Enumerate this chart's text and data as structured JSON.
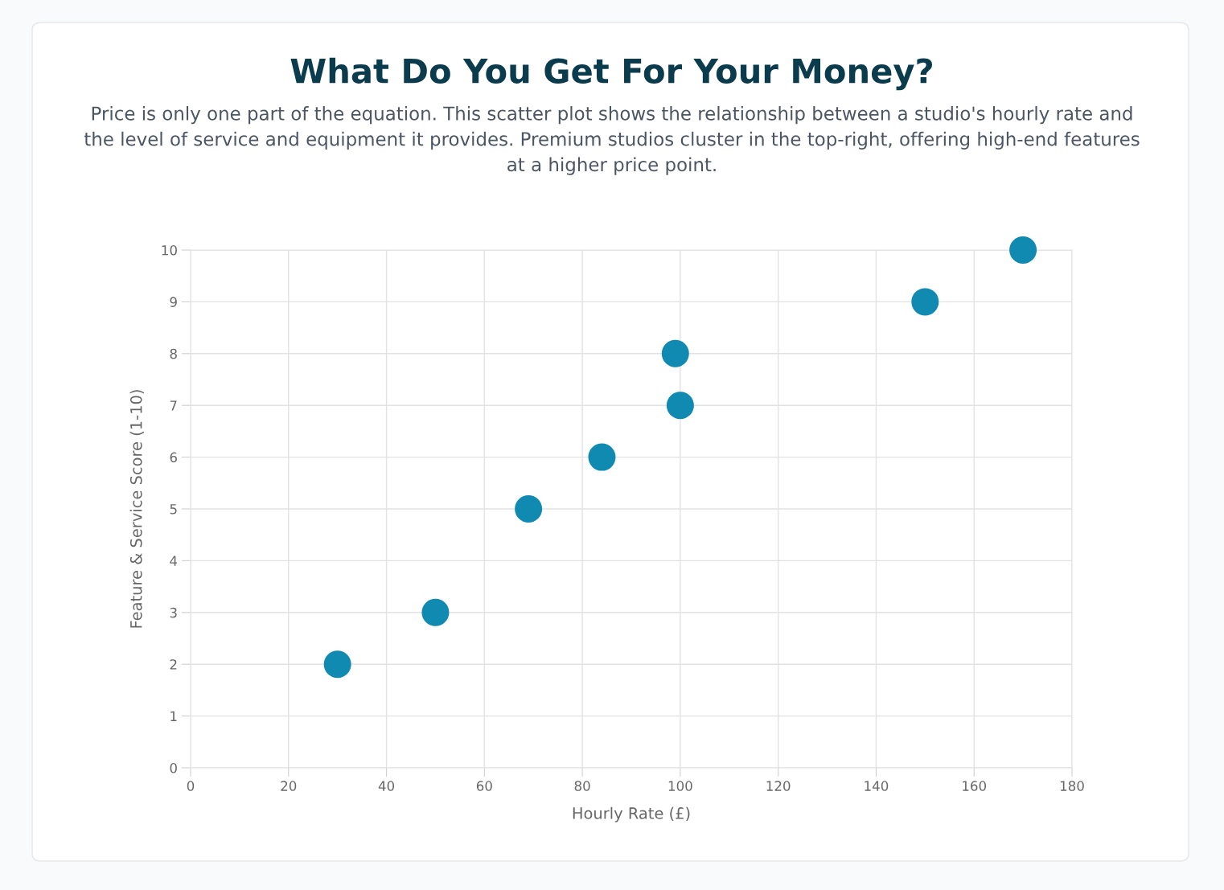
{
  "chart_data": {
    "type": "scatter",
    "title": "What Do You Get For Your Money?",
    "subtitle": "Price is only one part of the equation. This scatter plot shows the relationship between a studio's hourly rate and the level of service and equipment it provides. Premium studios cluster in the top-right, offering high-end features at a higher price point.",
    "xlabel": "Hourly Rate (£)",
    "ylabel": "Feature & Service Score (1-10)",
    "x": [
      30,
      50,
      69,
      84,
      99,
      100,
      150,
      170
    ],
    "series": [
      {
        "color": "#118ab2",
        "values": [
          2,
          3,
          5,
          6,
          8,
          7,
          9,
          10
        ]
      }
    ],
    "xlim": [
      0,
      180
    ],
    "xticks": [
      0,
      20,
      40,
      60,
      80,
      100,
      120,
      140,
      160,
      180
    ],
    "ylim": [
      0,
      10
    ],
    "yticks": [
      0,
      1,
      2,
      3,
      4,
      5,
      6,
      7,
      8,
      9,
      10
    ],
    "grid": true,
    "legend": false,
    "marker": "circle"
  }
}
